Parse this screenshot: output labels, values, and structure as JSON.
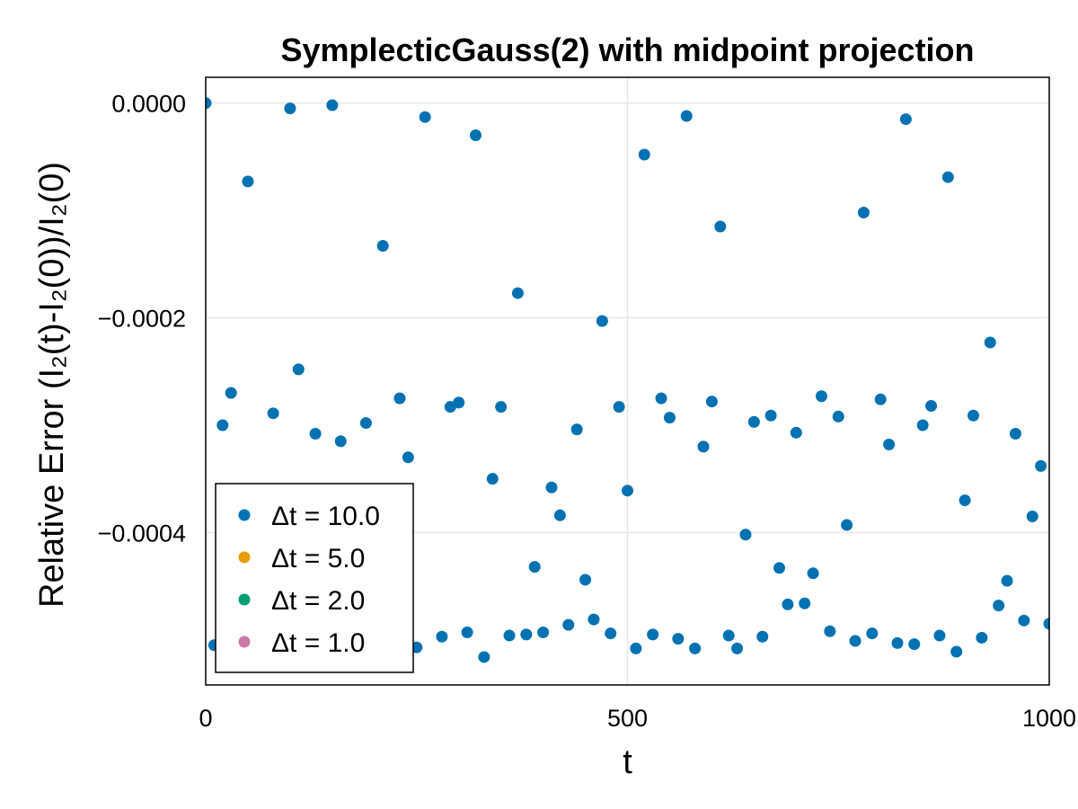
{
  "chart_data": {
    "type": "scatter",
    "title": "SymplecticGauss(2) with midpoint projection",
    "xlabel": "t",
    "ylabel": "Relative Error (I₂(t)-I₂(0))/I₂(0)",
    "xlim": [
      0,
      1000
    ],
    "ylim": [
      -0.000542,
      2.4e-05
    ],
    "x_ticks": [
      0,
      500,
      1000
    ],
    "x_tick_labels": [
      "0",
      "500",
      "1000"
    ],
    "y_ticks": [
      0,
      -0.0002,
      -0.0004
    ],
    "y_tick_labels": [
      "0.0000",
      "−0.0002",
      "−0.0004"
    ],
    "grid": true,
    "legend_position": "bottom-left",
    "series": [
      {
        "name": "Δt = 10.0",
        "color": "#0072b2",
        "x": [
          0,
          10,
          20,
          30,
          50,
          60,
          80,
          100,
          110,
          130,
          150,
          160,
          180,
          190,
          210,
          230,
          240,
          250,
          260,
          280,
          290,
          300,
          310,
          320,
          330,
          340,
          350,
          360,
          370,
          380,
          390,
          400,
          410,
          420,
          430,
          440,
          450,
          460,
          470,
          480,
          490,
          500,
          510,
          520,
          530,
          540,
          550,
          560,
          570,
          580,
          590,
          600,
          610,
          620,
          630,
          640,
          650,
          660,
          670,
          680,
          690,
          700,
          710,
          720,
          730,
          740,
          750,
          760,
          770,
          780,
          790,
          800,
          810,
          820,
          830,
          840,
          850,
          860,
          870,
          880,
          890,
          900,
          910,
          920,
          930,
          940,
          950,
          960,
          970,
          980,
          990,
          1000
        ],
        "y": [
          0,
          -0.000505,
          -0.0003,
          -0.00027,
          -7.3e-05,
          -0.000505,
          -0.000289,
          -5e-06,
          -0.000248,
          -0.000308,
          -2e-06,
          -0.000315,
          -0.000502,
          -0.000298,
          -0.000133,
          -0.000275,
          -0.00033,
          -0.000507,
          -1.3e-05,
          -0.000497,
          -0.000283,
          -0.000279,
          -0.000493,
          -3e-05,
          -0.000516,
          -0.00035,
          -0.000283,
          -0.000496,
          -0.000177,
          -0.000495,
          -0.000432,
          -0.000493,
          -0.000358,
          -0.000384,
          -0.000486,
          -0.000304,
          -0.000444,
          -0.000481,
          -0.000203,
          -0.000494,
          -0.000283,
          -0.000361,
          -0.000508,
          -4.8e-05,
          -0.000495,
          -0.000275,
          -0.000293,
          -0.000499,
          -1.2e-05,
          -0.000508,
          -0.00032,
          -0.000278,
          -0.000115,
          -0.000496,
          -0.000508,
          -0.000402,
          -0.000297,
          -0.000497,
          -0.000291,
          -0.000433,
          -0.000467,
          -0.000307,
          -0.000466,
          -0.000438,
          -0.000273,
          -0.000492,
          -0.000292,
          -0.000393,
          -0.000501,
          -0.000102,
          -0.000494,
          -0.000276,
          -0.000318,
          -0.000503,
          -1.5e-05,
          -0.000504,
          -0.0003,
          -0.000282,
          -0.000496,
          -6.9e-05,
          -0.000511,
          -0.00037,
          -0.000291,
          -0.000498,
          -0.000223,
          -0.000468,
          -0.000445,
          -0.000308,
          -0.000482,
          -0.000385,
          -0.000338,
          -0.000485
        ]
      },
      {
        "name": "Δt = 5.0",
        "color": "#e69f00"
      },
      {
        "name": "Δt = 2.0",
        "color": "#009e73"
      },
      {
        "name": "Δt = 1.0",
        "color": "#cc79a7"
      }
    ]
  }
}
